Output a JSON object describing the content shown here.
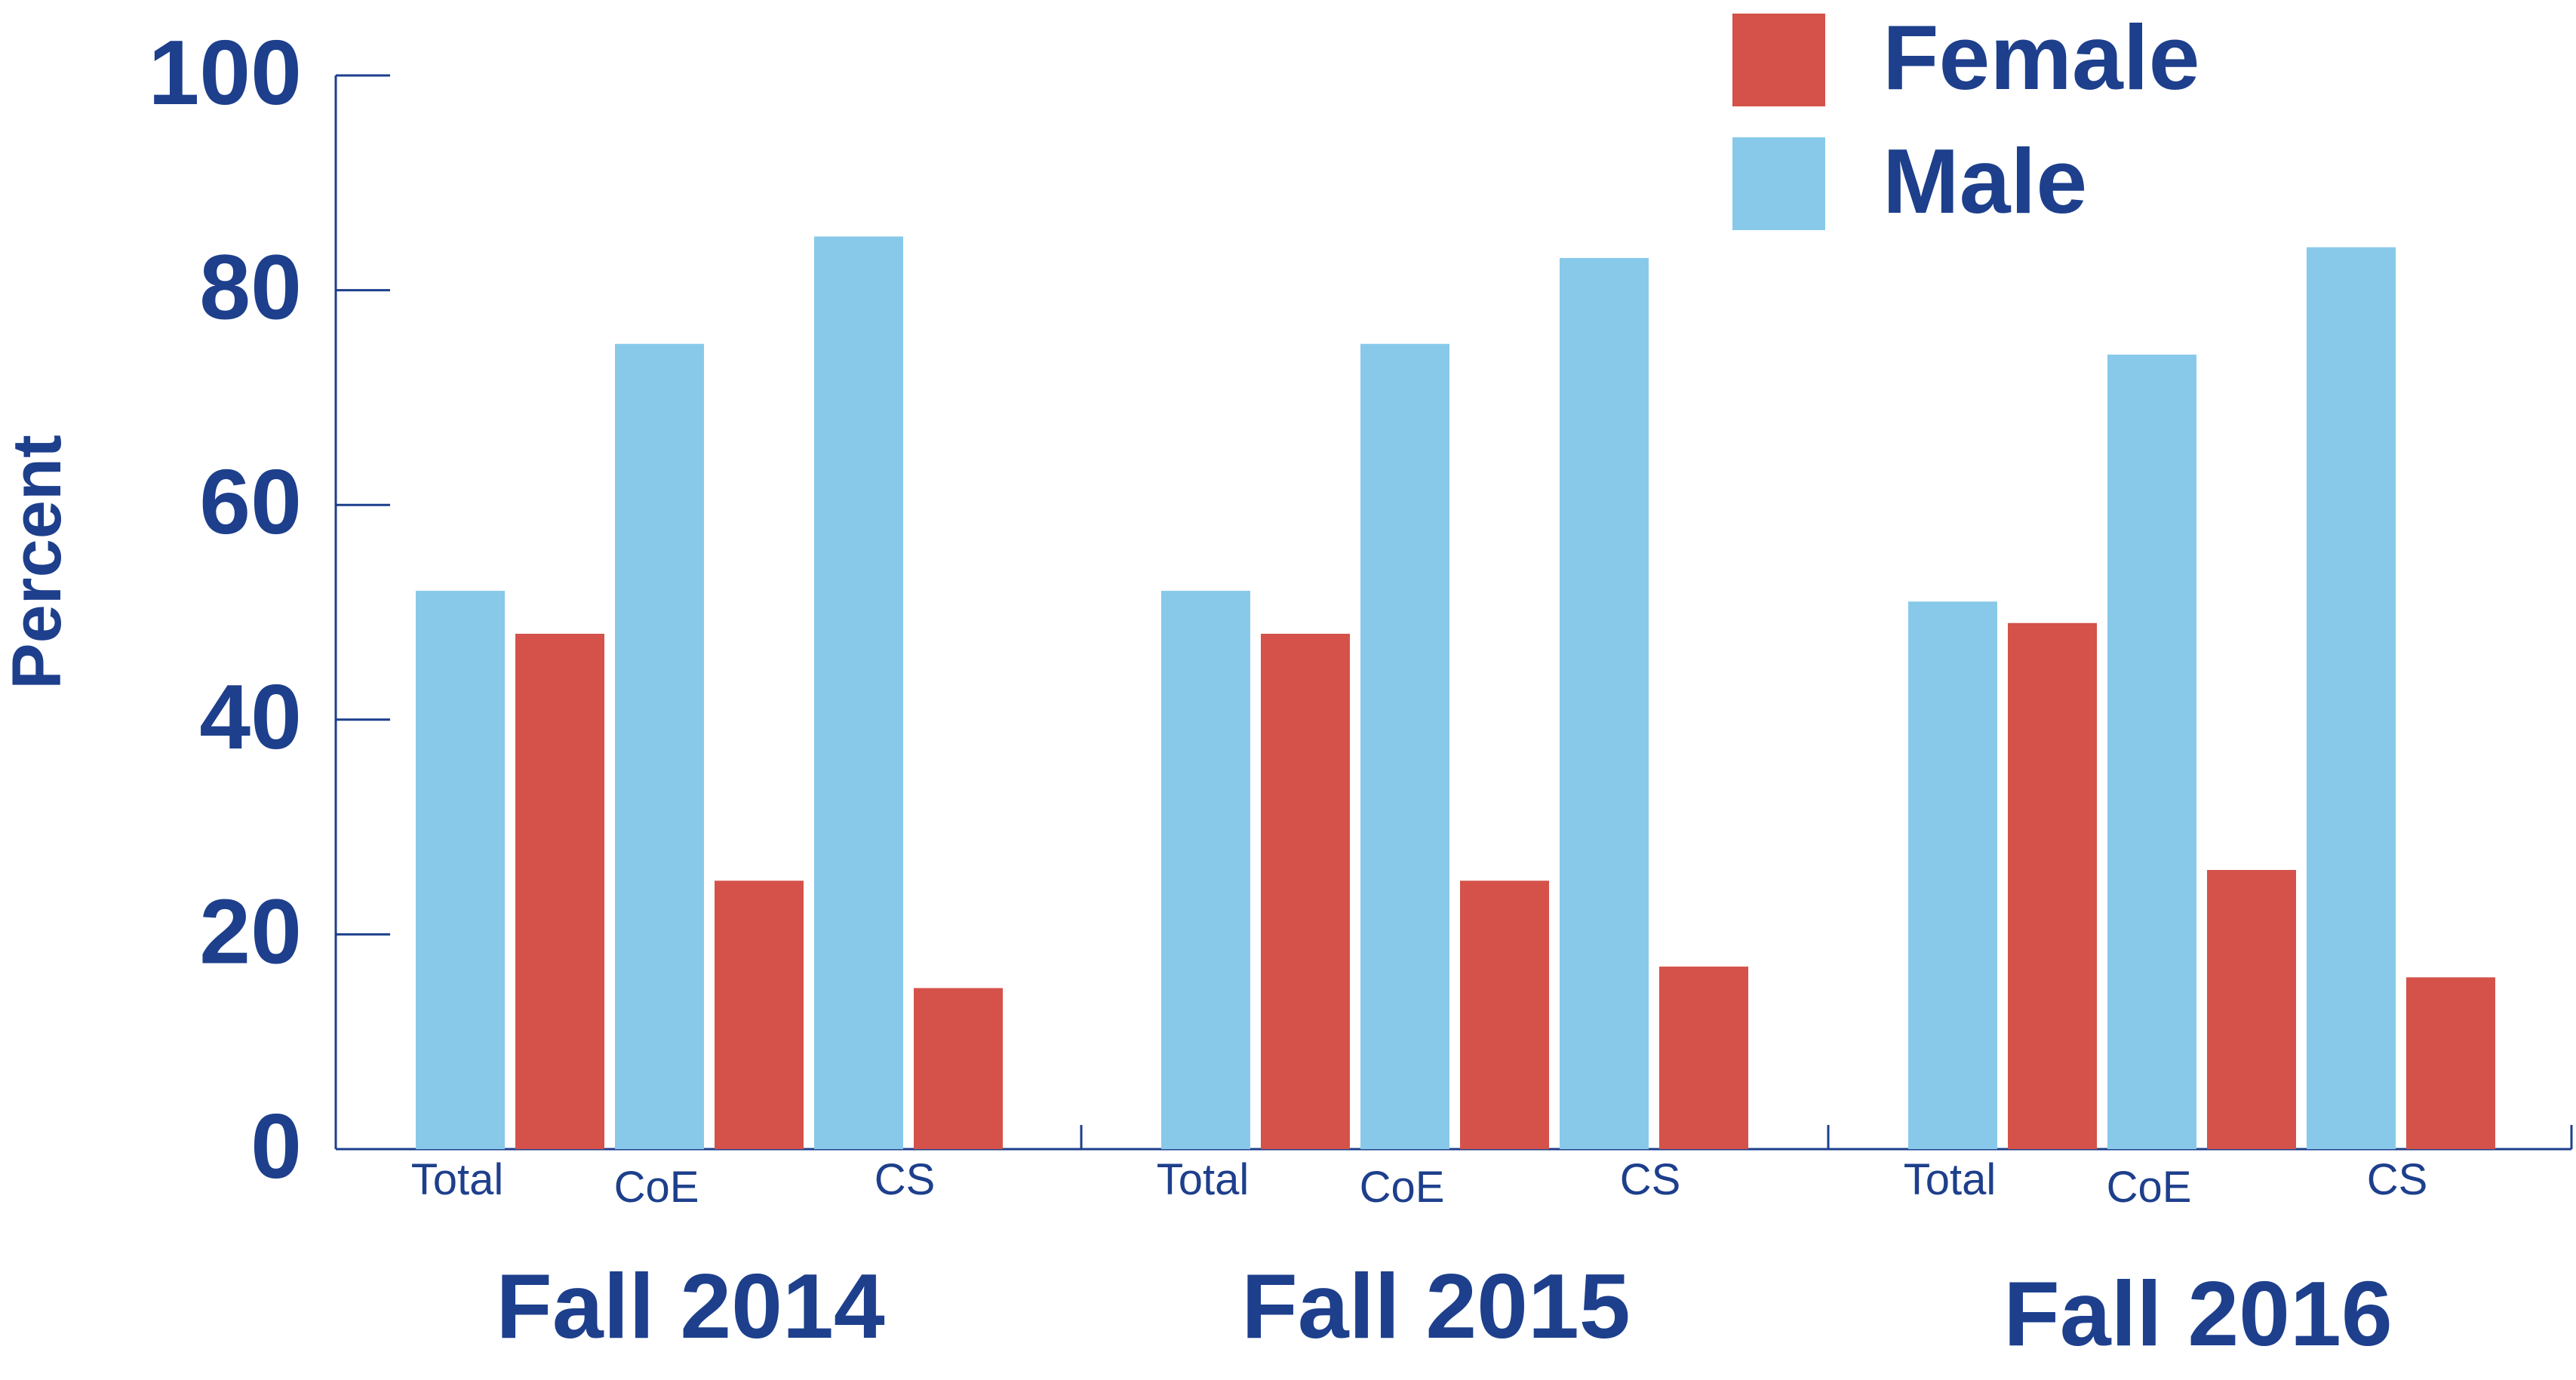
{
  "chart_data": {
    "type": "bar",
    "ylabel": "Percent",
    "ylim": [
      0,
      100
    ],
    "yticks": [
      0,
      20,
      40,
      60,
      80,
      100
    ],
    "groups": [
      {
        "label": "Fall 2014",
        "categories": [
          "Total",
          "CoE",
          "CS"
        ],
        "male": [
          52,
          75,
          85
        ],
        "female": [
          48,
          25,
          15
        ]
      },
      {
        "label": "Fall 2015",
        "categories": [
          "Total",
          "CoE",
          "CS"
        ],
        "male": [
          52,
          75,
          83
        ],
        "female": [
          48,
          25,
          17
        ]
      },
      {
        "label": "Fall 2016",
        "categories": [
          "Total",
          "CoE",
          "CS"
        ],
        "male": [
          51,
          74,
          84
        ],
        "female": [
          49,
          26,
          16
        ]
      }
    ],
    "series": [
      {
        "name": "Female",
        "color": "#d4524a"
      },
      {
        "name": "Male",
        "color": "#88c9ea"
      }
    ],
    "legend_position": "top-right",
    "text_color": "#1d3f8c",
    "axis_color": "#1d3f8c"
  }
}
